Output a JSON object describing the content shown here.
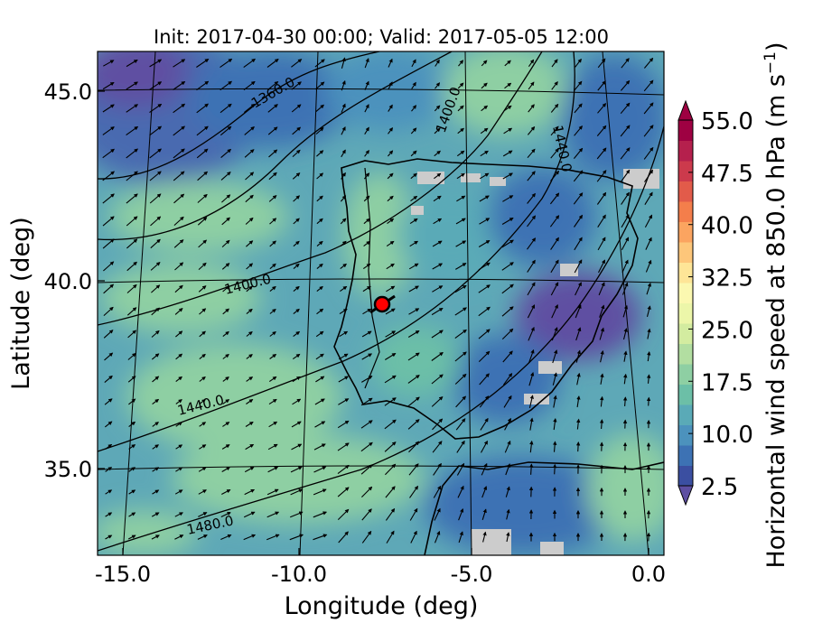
{
  "title": "Init: 2017-04-30 00:00; Valid: 2017-05-05 12:00",
  "xlabel": "Longitude (deg)",
  "ylabel": "Latitude (deg)",
  "xticks": [
    "-15.0",
    "-10.0",
    "-5.0",
    "0.0"
  ],
  "xtick_values": [
    -15,
    -10,
    -5,
    0
  ],
  "yticks": [
    "35.0",
    "40.0",
    "45.0"
  ],
  "ytick_values": [
    35,
    40,
    45
  ],
  "xlim": [
    -15.9,
    0.3
  ],
  "ylim": [
    32.5,
    46.2
  ],
  "contour_labels": [
    "1360.0",
    "1400.0",
    "1440.0",
    "1400.0",
    "1440.0",
    "1480.0"
  ],
  "point_marker": {
    "lon": -7.6,
    "lat": 39.35,
    "color": "#ff0000"
  },
  "colorbar": {
    "label": "Horizontal wind speed at 850.0 hPa",
    "label_unit": "(m s",
    "label_unit_exp": "−1",
    "label_unit_close": ")",
    "range": [
      2.5,
      55.0
    ],
    "step": 2.5,
    "ticks": [
      "2.5",
      "10.0",
      "17.5",
      "25.0",
      "32.5",
      "40.0",
      "47.5",
      "55.0"
    ],
    "tick_values": [
      2.5,
      10,
      17.5,
      25,
      32.5,
      40,
      47.5,
      55
    ],
    "colors": [
      "#3b4fa1",
      "#3d72b4",
      "#4c92bd",
      "#5aaab7",
      "#6cbfa7",
      "#8ecfa3",
      "#b2dea1",
      "#d3eca0",
      "#ecf6a9",
      "#fbf8b0",
      "#fee597",
      "#fdc67a",
      "#fba460",
      "#f47e4b",
      "#e25b4a",
      "#cc3a4c",
      "#b5204d",
      "#9e0142"
    ],
    "under_color": "#5e4fa2",
    "over_color": "#9e0142"
  },
  "chart_data": {
    "type": "heatmap",
    "title": "Init: 2017-04-30 00:00; Valid: 2017-05-05 12:00",
    "xlabel": "Longitude (deg)",
    "ylabel": "Latitude (deg)",
    "field": "Horizontal wind speed at 850.0 hPa",
    "units": "m s^-1",
    "value_range": [
      2.5,
      55.0
    ],
    "contour_levels_labeled": [
      1360.0,
      1400.0,
      1440.0,
      1480.0
    ]
  }
}
